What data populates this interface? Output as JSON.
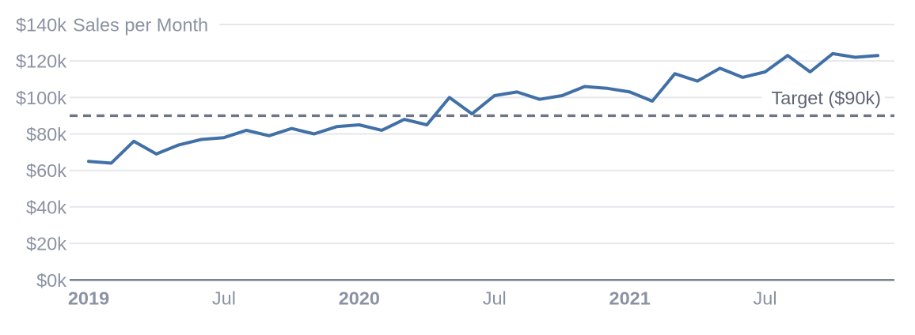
{
  "chart_data": {
    "type": "line",
    "title": "Sales per Month",
    "x": [
      "2019-01",
      "2019-02",
      "2019-03",
      "2019-04",
      "2019-05",
      "2019-06",
      "2019-07",
      "2019-08",
      "2019-09",
      "2019-10",
      "2019-11",
      "2019-12",
      "2020-01",
      "2020-02",
      "2020-03",
      "2020-04",
      "2020-05",
      "2020-06",
      "2020-07",
      "2020-08",
      "2020-09",
      "2020-10",
      "2020-11",
      "2020-12",
      "2021-01",
      "2021-02",
      "2021-03",
      "2021-04",
      "2021-05",
      "2021-06",
      "2021-07",
      "2021-08",
      "2021-09",
      "2021-10",
      "2021-11",
      "2021-12"
    ],
    "series": [
      {
        "name": "Sales",
        "unit": "USD thousands",
        "values": [
          65,
          64,
          76,
          69,
          74,
          77,
          78,
          82,
          79,
          83,
          80,
          84,
          85,
          82,
          88,
          85,
          100,
          91,
          101,
          103,
          99,
          101,
          106,
          105,
          103,
          98,
          113,
          109,
          116,
          111,
          114,
          123,
          114,
          124,
          122,
          123
        ]
      }
    ],
    "target": {
      "value": 90,
      "label": "Target ($90k)"
    },
    "ylim": [
      0,
      140
    ],
    "y_tick_step": 20,
    "y_ticks": [
      "$0k",
      "$20k",
      "$40k",
      "$60k",
      "$80k",
      "$100k",
      "$120k",
      "$140k"
    ],
    "x_ticks": [
      {
        "label": "2019",
        "month_index": 0,
        "bold": true
      },
      {
        "label": "Jul",
        "month_index": 6,
        "bold": false
      },
      {
        "label": "2020",
        "month_index": 12,
        "bold": true
      },
      {
        "label": "Jul",
        "month_index": 18,
        "bold": false
      },
      {
        "label": "2021",
        "month_index": 24,
        "bold": true
      },
      {
        "label": "Jul",
        "month_index": 30,
        "bold": false
      }
    ],
    "grid": true,
    "legend": "none",
    "colors": {
      "line": "#4170a6",
      "grid": "#e6e7eb",
      "axis": "#7c8492",
      "target_line": "#6d7687",
      "tick_label": "#8b92a2",
      "title_text": "#8b92a2",
      "target_label": "#5d6574",
      "background": "#ffffff"
    }
  }
}
